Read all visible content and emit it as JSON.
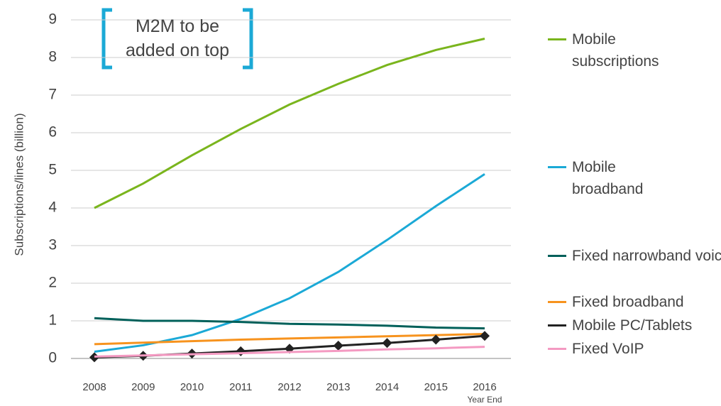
{
  "chart_data": {
    "type": "line",
    "annotation": "M2M to be added on top",
    "y_label": "Subscriptions/lines (billion)",
    "x_note": "Year End",
    "categories": [
      "2008",
      "2009",
      "2010",
      "2011",
      "2012",
      "2013",
      "2014",
      "2015",
      "2016"
    ],
    "ylim": [
      0,
      9
    ],
    "yticks": [
      0,
      1,
      2,
      3,
      4,
      5,
      6,
      7,
      8,
      9
    ],
    "grid": true,
    "legend": "right",
    "series": [
      {
        "name": "Mobile subscriptions",
        "color": "#7ab51d",
        "values": [
          4.0,
          4.65,
          5.4,
          6.1,
          6.75,
          7.3,
          7.8,
          8.2,
          8.5
        ]
      },
      {
        "name": "Mobile broadband",
        "color": "#1ba9d6",
        "values": [
          0.18,
          0.35,
          0.62,
          1.05,
          1.6,
          2.3,
          3.15,
          4.05,
          4.9
        ]
      },
      {
        "name": "Fixed narrowband voice",
        "color": "#00605a",
        "values": [
          1.07,
          1.0,
          1.0,
          0.97,
          0.92,
          0.9,
          0.87,
          0.82,
          0.8
        ]
      },
      {
        "name": "Fixed broadband",
        "color": "#f7931e",
        "values": [
          0.38,
          0.42,
          0.46,
          0.5,
          0.53,
          0.56,
          0.59,
          0.62,
          0.65
        ]
      },
      {
        "name": "Mobile PC/Tablets",
        "color": "#222222",
        "marker": "diamond",
        "values": [
          0.03,
          0.07,
          0.13,
          0.19,
          0.26,
          0.34,
          0.41,
          0.5,
          0.6
        ]
      },
      {
        "name": "Fixed VoIP",
        "color": "#f49ac2",
        "values": [
          0.05,
          0.08,
          0.11,
          0.14,
          0.17,
          0.2,
          0.24,
          0.27,
          0.31
        ]
      }
    ]
  }
}
